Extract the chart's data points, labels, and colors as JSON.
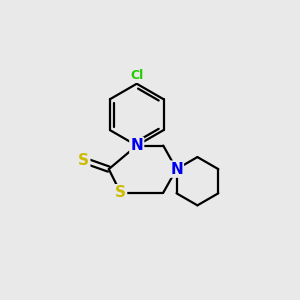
{
  "background_color": "#e9e9e9",
  "atom_colors": {
    "C": "#000000",
    "N": "#0000ee",
    "S": "#ccbb00",
    "Cl": "#22cc00",
    "H": "#000000"
  },
  "bond_color": "#000000",
  "bond_width": 1.6,
  "figsize": [
    3.0,
    3.0
  ],
  "dpi": 100
}
